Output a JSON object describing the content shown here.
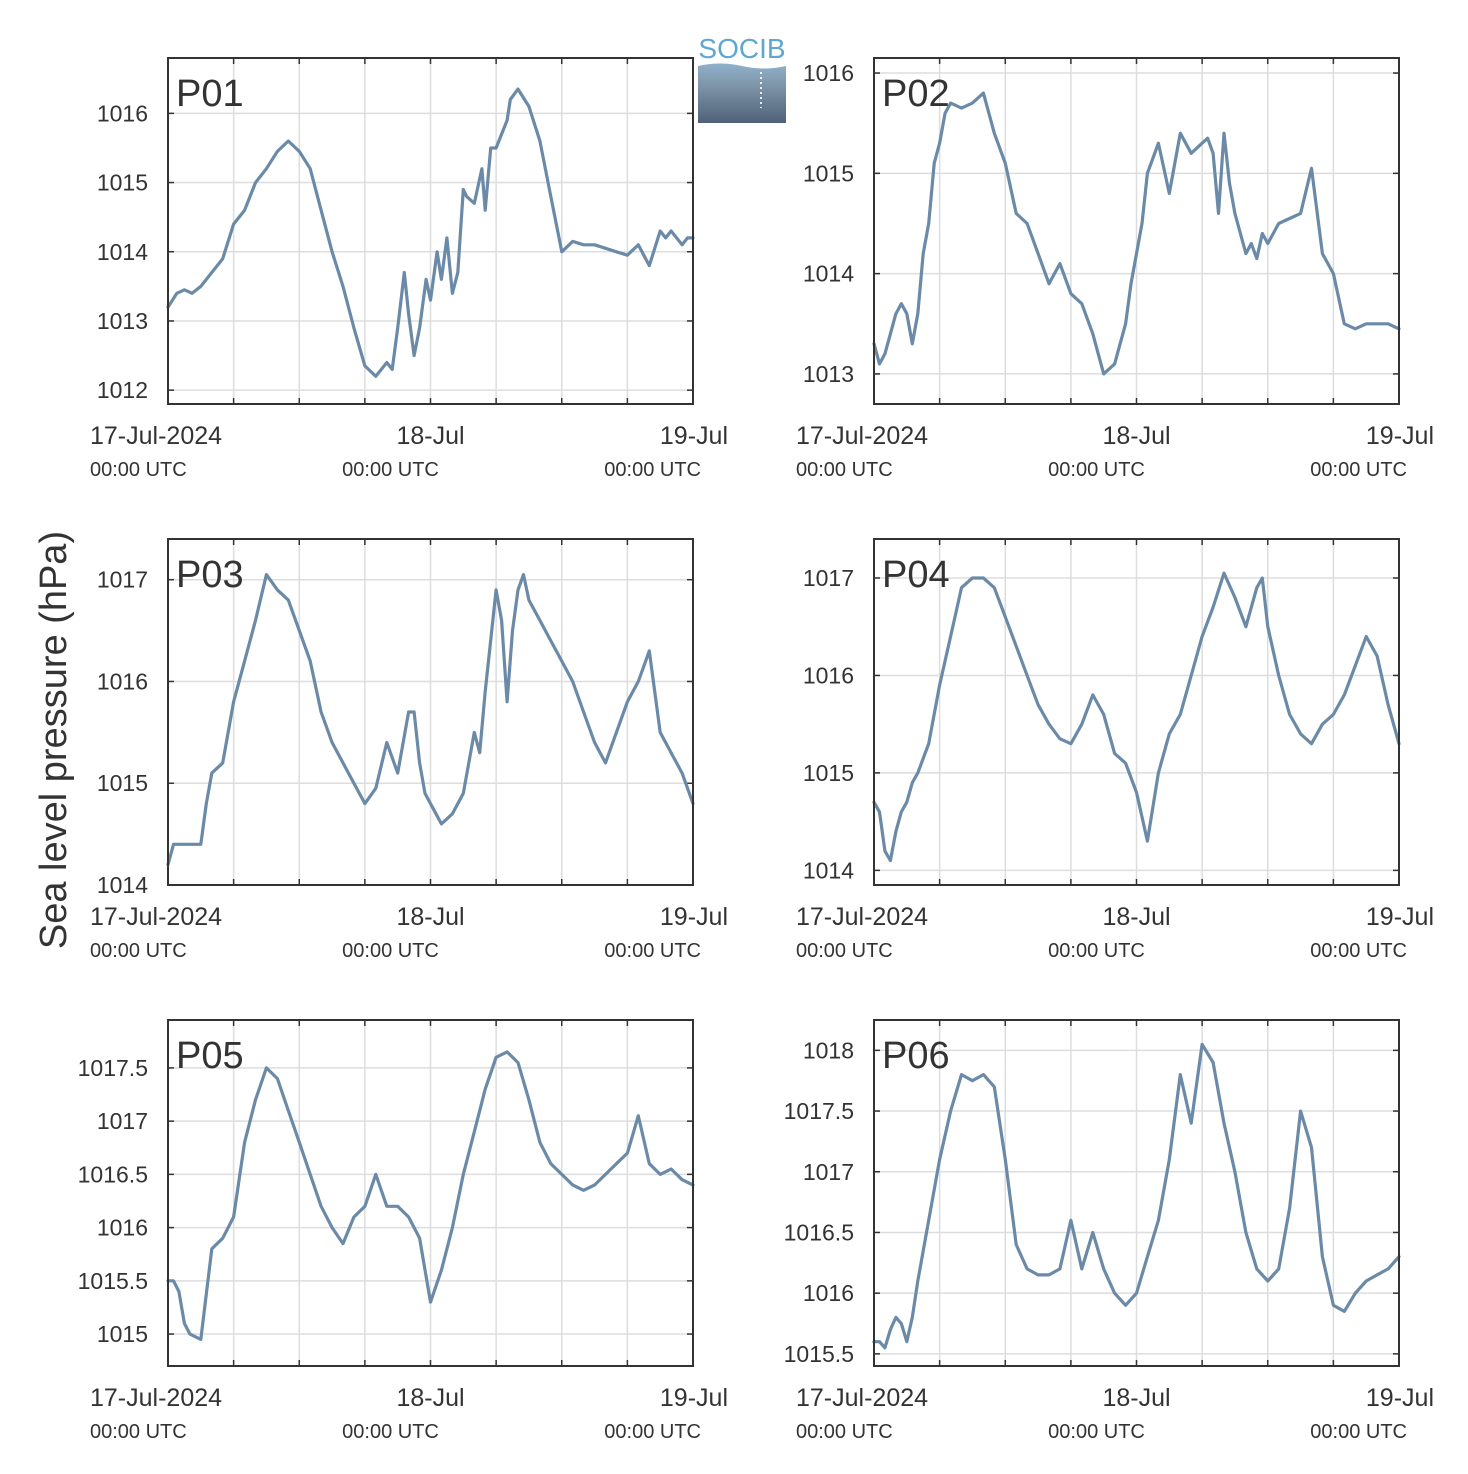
{
  "ylabel": "Sea level pressure (hPa)",
  "logo": {
    "text": "SOCIB"
  },
  "colors": {
    "series": "#6b8aa8",
    "panel_label": "#e8201e",
    "axis": "#333333",
    "grid": "#dddddd"
  },
  "x_ticks": [
    {
      "date": "17-Jul-2024",
      "time": "00:00 UTC"
    },
    {
      "date": "18-Jul",
      "time": "00:00 UTC"
    },
    {
      "date": "19-Jul",
      "time": "00:00 UTC"
    }
  ],
  "chart_data": [
    {
      "type": "line",
      "panel_label": "P01",
      "x_unit": "hours since 17-Jul-2024 00:00 UTC",
      "xlim": [
        0,
        48
      ],
      "ylim": [
        1011.8,
        1016.8
      ],
      "yticks": [
        1012,
        1013,
        1014,
        1015,
        1016
      ],
      "ytick_labels": [
        "1012",
        "1013",
        "1014",
        "1015",
        "1016"
      ],
      "series": [
        {
          "x": [
            0,
            0.8,
            1.5,
            2.2,
            3,
            4,
            5,
            6,
            7,
            8,
            9,
            10,
            11,
            12,
            13,
            14,
            15,
            16,
            17,
            18,
            19,
            20,
            20.5,
            21,
            21.6,
            22,
            22.5,
            23,
            23.6,
            24,
            24.6,
            25,
            25.5,
            26,
            26.5,
            27,
            27.3,
            28,
            28.7,
            29,
            29.5,
            30,
            30.5,
            31,
            31.3,
            32,
            33,
            34,
            35,
            36,
            37,
            38,
            39,
            40,
            41,
            42,
            43,
            44,
            45,
            45.5,
            46,
            47,
            47.5,
            48
          ],
          "values": [
            1013.2,
            1013.4,
            1013.45,
            1013.4,
            1013.5,
            1013.7,
            1013.9,
            1014.4,
            1014.6,
            1015.0,
            1015.2,
            1015.45,
            1015.6,
            1015.45,
            1015.2,
            1014.6,
            1014.0,
            1013.5,
            1012.9,
            1012.35,
            1012.2,
            1012.4,
            1012.3,
            1012.9,
            1013.7,
            1013.1,
            1012.5,
            1012.9,
            1013.6,
            1013.3,
            1014.0,
            1013.6,
            1014.2,
            1013.4,
            1013.7,
            1014.9,
            1014.8,
            1014.7,
            1015.2,
            1014.6,
            1015.5,
            1015.5,
            1015.7,
            1015.9,
            1016.2,
            1016.35,
            1016.1,
            1015.6,
            1014.8,
            1014.0,
            1014.15,
            1014.1,
            1014.1,
            1014.05,
            1014.0,
            1013.95,
            1014.1,
            1013.8,
            1014.3,
            1014.2,
            1014.3,
            1014.1,
            1014.2,
            1014.2
          ]
        }
      ]
    },
    {
      "type": "line",
      "panel_label": "P02",
      "x_unit": "hours since 17-Jul-2024 00:00 UTC",
      "xlim": [
        0,
        48
      ],
      "ylim": [
        1012.7,
        1016.15
      ],
      "yticks": [
        1013,
        1014,
        1015,
        1016
      ],
      "ytick_labels": [
        "1013",
        "1014",
        "1015",
        "1016"
      ],
      "series": [
        {
          "x": [
            0,
            0.5,
            1,
            1.5,
            2,
            2.5,
            3,
            3.5,
            4,
            4.5,
            5,
            5.5,
            6,
            6.5,
            7,
            8,
            9,
            10,
            11,
            12,
            13,
            14,
            15,
            16,
            17,
            18,
            19,
            20,
            21,
            22,
            23,
            23.5,
            24,
            24.5,
            25,
            26,
            27,
            28,
            29,
            30,
            30.5,
            31,
            31.5,
            32,
            32.5,
            33,
            33.5,
            34,
            34.5,
            35,
            35.5,
            36,
            37,
            38,
            39,
            40,
            41,
            42,
            43,
            44,
            45,
            46,
            47,
            48
          ],
          "values": [
            1013.3,
            1013.1,
            1013.2,
            1013.4,
            1013.6,
            1013.7,
            1013.6,
            1013.3,
            1013.6,
            1014.2,
            1014.5,
            1015.1,
            1015.3,
            1015.6,
            1015.7,
            1015.65,
            1015.7,
            1015.8,
            1015.4,
            1015.1,
            1014.6,
            1014.5,
            1014.2,
            1013.9,
            1014.1,
            1013.8,
            1013.7,
            1013.4,
            1013.0,
            1013.1,
            1013.5,
            1013.9,
            1014.2,
            1014.5,
            1015.0,
            1015.3,
            1014.8,
            1015.4,
            1015.2,
            1015.3,
            1015.35,
            1015.2,
            1014.6,
            1015.4,
            1014.9,
            1014.6,
            1014.4,
            1014.2,
            1014.3,
            1014.15,
            1014.4,
            1014.3,
            1014.5,
            1014.55,
            1014.6,
            1015.05,
            1014.2,
            1014.0,
            1013.5,
            1013.45,
            1013.5,
            1013.5,
            1013.5,
            1013.45
          ]
        }
      ]
    },
    {
      "type": "line",
      "panel_label": "P03",
      "x_unit": "hours since 17-Jul-2024 00:00 UTC",
      "xlim": [
        0,
        48
      ],
      "ylim": [
        1014,
        1017.4
      ],
      "yticks": [
        1014,
        1015,
        1016,
        1017
      ],
      "ytick_labels": [
        "1014",
        "1015",
        "1016",
        "1017"
      ],
      "series": [
        {
          "x": [
            0,
            0.5,
            1,
            2,
            3,
            3.5,
            4,
            5,
            6,
            7,
            8,
            9,
            10,
            11,
            12,
            13,
            14,
            15,
            16,
            17,
            18,
            19,
            20,
            21,
            22,
            22.5,
            23,
            23.5,
            24,
            25,
            26,
            27,
            28,
            28.5,
            29,
            30,
            30.5,
            31,
            31.5,
            32,
            32.5,
            33,
            34,
            35,
            36,
            37,
            38,
            39,
            40,
            41,
            42,
            43,
            44,
            45,
            46,
            47,
            48
          ],
          "values": [
            1014.2,
            1014.4,
            1014.4,
            1014.4,
            1014.4,
            1014.8,
            1015.1,
            1015.2,
            1015.8,
            1016.2,
            1016.6,
            1017.05,
            1016.9,
            1016.8,
            1016.5,
            1016.2,
            1015.7,
            1015.4,
            1015.2,
            1015.0,
            1014.8,
            1014.95,
            1015.4,
            1015.1,
            1015.7,
            1015.7,
            1015.2,
            1014.9,
            1014.8,
            1014.6,
            1014.7,
            1014.9,
            1015.5,
            1015.3,
            1015.9,
            1016.9,
            1016.6,
            1015.8,
            1016.5,
            1016.9,
            1017.05,
            1016.8,
            1016.6,
            1016.4,
            1016.2,
            1016.0,
            1015.7,
            1015.4,
            1015.2,
            1015.5,
            1015.8,
            1016.0,
            1016.3,
            1015.5,
            1015.3,
            1015.1,
            1014.8
          ]
        }
      ]
    },
    {
      "type": "line",
      "panel_label": "P04",
      "x_unit": "hours since 17-Jul-2024 00:00 UTC",
      "xlim": [
        0,
        48
      ],
      "ylim": [
        1013.85,
        1017.4
      ],
      "yticks": [
        1014,
        1015,
        1016,
        1017
      ],
      "ytick_labels": [
        "1014",
        "1015",
        "1016",
        "1017"
      ],
      "series": [
        {
          "x": [
            0,
            0.5,
            1,
            1.5,
            2,
            2.5,
            3,
            3.5,
            4,
            5,
            6,
            7,
            8,
            9,
            10,
            11,
            12,
            13,
            14,
            15,
            16,
            17,
            18,
            19,
            20,
            21,
            22,
            23,
            24,
            25,
            26,
            27,
            28,
            29,
            30,
            31,
            32,
            33,
            34,
            35,
            35.5,
            36,
            37,
            38,
            39,
            40,
            41,
            42,
            43,
            44,
            45,
            46,
            47,
            48
          ],
          "values": [
            1014.7,
            1014.6,
            1014.2,
            1014.1,
            1014.4,
            1014.6,
            1014.7,
            1014.9,
            1015.0,
            1015.3,
            1015.9,
            1016.4,
            1016.9,
            1017.0,
            1017.0,
            1016.9,
            1016.6,
            1016.3,
            1016.0,
            1015.7,
            1015.5,
            1015.35,
            1015.3,
            1015.5,
            1015.8,
            1015.6,
            1015.2,
            1015.1,
            1014.8,
            1014.3,
            1015.0,
            1015.4,
            1015.6,
            1016.0,
            1016.4,
            1016.7,
            1017.05,
            1016.8,
            1016.5,
            1016.9,
            1017.0,
            1016.5,
            1016.0,
            1015.6,
            1015.4,
            1015.3,
            1015.5,
            1015.6,
            1015.8,
            1016.1,
            1016.4,
            1016.2,
            1015.7,
            1015.3
          ]
        }
      ]
    },
    {
      "type": "line",
      "panel_label": "P05",
      "x_unit": "hours since 17-Jul-2024 00:00 UTC",
      "xlim": [
        0,
        48
      ],
      "ylim": [
        1014.7,
        1017.95
      ],
      "yticks": [
        1015,
        1015.5,
        1016,
        1016.5,
        1017,
        1017.5
      ],
      "ytick_labels": [
        "1015",
        "1015.5",
        "1016",
        "1016.5",
        "1017",
        "1017.5"
      ],
      "series": [
        {
          "x": [
            0,
            0.5,
            1,
            1.5,
            2,
            3,
            4,
            5,
            6,
            7,
            8,
            9,
            10,
            11,
            12,
            13,
            14,
            15,
            16,
            17,
            18,
            19,
            20,
            21,
            22,
            23,
            24,
            25,
            26,
            27,
            28,
            29,
            30,
            31,
            32,
            33,
            34,
            35,
            36,
            37,
            38,
            39,
            40,
            41,
            42,
            43,
            44,
            45,
            46,
            47,
            48
          ],
          "values": [
            1015.5,
            1015.5,
            1015.4,
            1015.1,
            1015.0,
            1014.95,
            1015.8,
            1015.9,
            1016.1,
            1016.8,
            1017.2,
            1017.5,
            1017.4,
            1017.1,
            1016.8,
            1016.5,
            1016.2,
            1016.0,
            1015.85,
            1016.1,
            1016.2,
            1016.5,
            1016.2,
            1016.2,
            1016.1,
            1015.9,
            1015.3,
            1015.6,
            1016.0,
            1016.5,
            1016.9,
            1017.3,
            1017.6,
            1017.65,
            1017.55,
            1017.2,
            1016.8,
            1016.6,
            1016.5,
            1016.4,
            1016.35,
            1016.4,
            1016.5,
            1016.6,
            1016.7,
            1017.05,
            1016.6,
            1016.5,
            1016.55,
            1016.45,
            1016.4
          ]
        }
      ]
    },
    {
      "type": "line",
      "panel_label": "P06",
      "x_unit": "hours since 17-Jul-2024 00:00 UTC",
      "xlim": [
        0,
        48
      ],
      "ylim": [
        1015.4,
        1018.25
      ],
      "yticks": [
        1015.5,
        1016,
        1016.5,
        1017,
        1017.5,
        1018
      ],
      "ytick_labels": [
        "1015.5",
        "1016",
        "1016.5",
        "1017",
        "1017.5",
        "1018"
      ],
      "series": [
        {
          "x": [
            0,
            0.5,
            1,
            1.5,
            2,
            2.5,
            3,
            3.5,
            4,
            5,
            6,
            7,
            8,
            9,
            10,
            11,
            12,
            13,
            14,
            15,
            16,
            17,
            18,
            19,
            20,
            21,
            22,
            23,
            24,
            25,
            26,
            27,
            28,
            29,
            30,
            31,
            32,
            33,
            34,
            35,
            36,
            37,
            38,
            39,
            40,
            41,
            42,
            43,
            44,
            45,
            46,
            47,
            48
          ],
          "values": [
            1015.6,
            1015.6,
            1015.55,
            1015.7,
            1015.8,
            1015.75,
            1015.6,
            1015.8,
            1016.1,
            1016.6,
            1017.1,
            1017.5,
            1017.8,
            1017.75,
            1017.8,
            1017.7,
            1017.1,
            1016.4,
            1016.2,
            1016.15,
            1016.15,
            1016.2,
            1016.6,
            1016.2,
            1016.5,
            1016.2,
            1016.0,
            1015.9,
            1016.0,
            1016.3,
            1016.6,
            1017.1,
            1017.8,
            1017.4,
            1018.05,
            1017.9,
            1017.4,
            1017.0,
            1016.5,
            1016.2,
            1016.1,
            1016.2,
            1016.7,
            1017.5,
            1017.2,
            1016.3,
            1015.9,
            1015.85,
            1016.0,
            1016.1,
            1016.15,
            1016.2,
            1016.3
          ]
        }
      ]
    }
  ]
}
